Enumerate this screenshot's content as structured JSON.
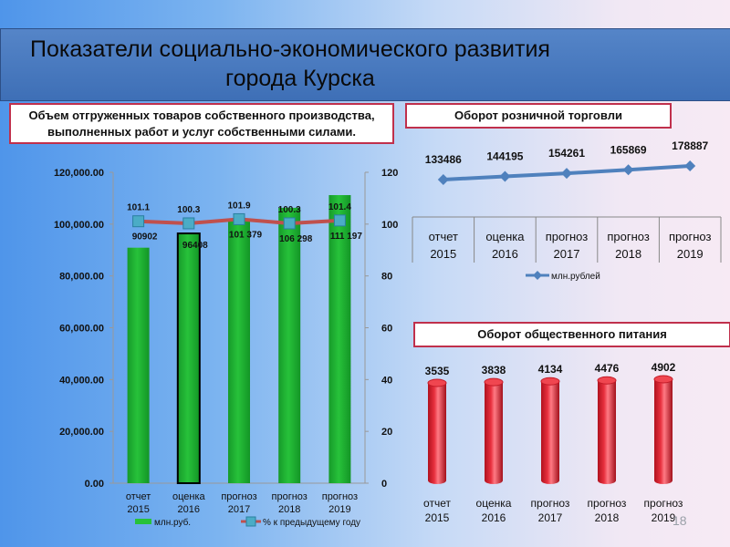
{
  "slide": {
    "title_line1": "Показатели социально-экономического развития",
    "title_line2": "города Курска",
    "page_number": "18"
  },
  "colors": {
    "bar_green": "#27c23a",
    "line_red": "#c0504d",
    "marker_blue": "#4bacc6",
    "line_blue": "#4f81bd",
    "cylinder_red": "#e8303e",
    "box_border": "#c0304c"
  },
  "chart_data": [
    {
      "id": "shipped",
      "type": "bar",
      "title": "Объем отгруженных товаров собственного производства, выполненных работ и услуг собственными силами.",
      "categories": [
        "отчет 2015",
        "оценка 2016",
        "прогноз 2017",
        "прогноз 2018",
        "прогноз 2019"
      ],
      "series": [
        {
          "name": "млн.руб.",
          "type": "bar",
          "axis": "left",
          "values": [
            90902,
            96408,
            101379,
            106298,
            111197
          ],
          "labels": [
            "90902",
            "96408",
            "101 379",
            "106 298",
            "111 197"
          ]
        },
        {
          "name": "% к предыдущему году",
          "type": "line",
          "axis": "right",
          "values": [
            101.1,
            100.3,
            101.9,
            100.3,
            101.4
          ],
          "labels": [
            "101.1",
            "100.3",
            "101.9",
            "100.3",
            "101.4"
          ]
        }
      ],
      "ylim": [
        0,
        120000
      ],
      "y_ticks": [
        "0.00",
        "20,000.00",
        "40,000.00",
        "60,000.00",
        "80,000.00",
        "100,000.00",
        "120,000.00"
      ],
      "y2lim": [
        0,
        120
      ],
      "y2_ticks": [
        "0",
        "20",
        "40",
        "60",
        "80",
        "100",
        "120"
      ],
      "legend_position": "bottom",
      "grid": false
    },
    {
      "id": "retail",
      "type": "line",
      "title": "Оборот розничной торговли",
      "categories": [
        "отчет 2015",
        "оценка 2016",
        "прогноз 2017",
        "прогноз 2018",
        "прогноз 2019"
      ],
      "series": [
        {
          "name": "млн.рублей",
          "values": [
            133486,
            144195,
            154261,
            165869,
            178887
          ]
        }
      ],
      "legend_position": "bottom",
      "grid": false
    },
    {
      "id": "catering",
      "type": "bar",
      "title": "Оборот общественного питания",
      "categories": [
        "отчет 2015",
        "оценка 2016",
        "прогноз 2017",
        "прогноз 2018",
        "прогноз 2019"
      ],
      "values": [
        3535,
        3838,
        4134,
        4476,
        4902
      ],
      "grid": false
    }
  ]
}
